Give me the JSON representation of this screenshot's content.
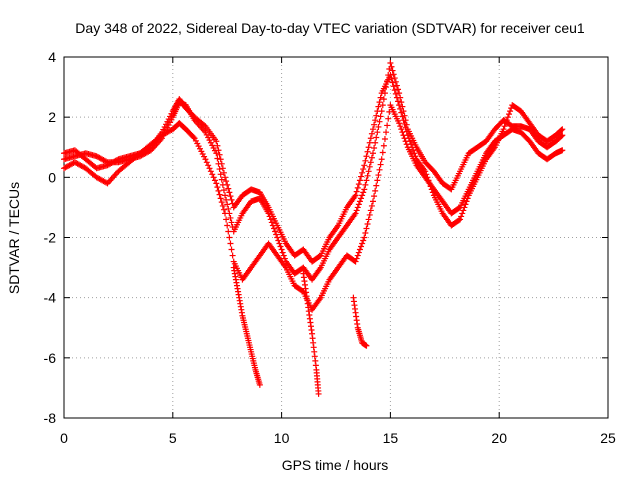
{
  "chart_data": {
    "type": "scatter",
    "title": "Day 348 of 2022, Sidereal Day-to-day VTEC variation (SDTVAR) for receiver ceu1",
    "xlabel": "GPS time / hours",
    "ylabel": "SDTVAR / TECUs",
    "xlim": [
      0,
      25
    ],
    "ylim": [
      -8,
      4
    ],
    "xticks": [
      "0",
      "5",
      "10",
      "15",
      "20",
      "25"
    ],
    "yticks": [
      "-8",
      "-6",
      "-4",
      "-2",
      "0",
      "2",
      "4"
    ],
    "grid": true,
    "marker": "+",
    "color": "#ff0000",
    "series": [
      {
        "x": [
          0,
          0.5,
          1,
          1.5,
          2,
          2.5,
          3,
          3.5,
          4,
          4.5,
          5,
          5.3,
          5.6,
          6,
          6.5,
          7,
          7.4,
          7.8,
          8.2,
          8.6,
          9,
          9.4,
          9.8,
          10.2,
          10.6,
          11,
          11.4,
          11.8,
          12.2,
          12.6,
          13,
          13.4,
          13.8,
          14.2,
          14.6,
          15,
          15.4,
          15.8,
          16.2,
          16.6,
          17,
          17.4,
          17.8,
          18.2,
          18.6,
          19,
          19.4,
          19.8,
          20.2,
          20.6,
          21,
          21.4,
          21.8,
          22.2,
          22.6,
          22.9
        ],
        "y": [
          0.6,
          0.7,
          0.8,
          0.7,
          0.5,
          0.5,
          0.6,
          0.7,
          0.9,
          1.3,
          2.0,
          2.5,
          2.4,
          1.9,
          1.5,
          0.8,
          -0.6,
          -1.8,
          -1.2,
          -0.8,
          -0.7,
          -1.2,
          -2.0,
          -2.8,
          -3.2,
          -3.0,
          -3.4,
          -3.0,
          -2.4,
          -2.0,
          -1.6,
          -1.2,
          -0.4,
          0.8,
          2.2,
          3.8,
          2.8,
          1.6,
          1.0,
          0.5,
          0.2,
          -0.2,
          -0.4,
          0.2,
          0.8,
          1.0,
          1.2,
          1.6,
          1.9,
          1.7,
          1.7,
          1.6,
          1.2,
          1.0,
          1.2,
          1.4
        ]
      },
      {
        "x": [
          0,
          0.5,
          1,
          1.5,
          2,
          2.5,
          3,
          3.5,
          4,
          4.5,
          5,
          5.3,
          5.6,
          6,
          6.5,
          7,
          7.4,
          7.8,
          8.2,
          8.6,
          9,
          9.4,
          9.8,
          10.2,
          10.6,
          11,
          11.4,
          11.8,
          12.2,
          12.6,
          13,
          13.4,
          13.8,
          14.2,
          14.6,
          15,
          15.4,
          15.8,
          16.2,
          16.6,
          17,
          17.4,
          17.8,
          18.2,
          18.6,
          19,
          19.4,
          19.8,
          20.2,
          20.6,
          21,
          21.4,
          21.8,
          22.2,
          22.6,
          22.9
        ],
        "y": [
          0.3,
          0.5,
          0.3,
          0.0,
          -0.2,
          0.2,
          0.5,
          0.8,
          1.1,
          1.4,
          1.6,
          1.8,
          1.6,
          1.3,
          0.6,
          -0.2,
          -1.2,
          -2.8,
          -3.4,
          -3.0,
          -2.6,
          -2.2,
          -2.6,
          -3.0,
          -3.6,
          -3.8,
          -4.4,
          -4.0,
          -3.4,
          -3.0,
          -2.6,
          -2.8,
          -2.0,
          -0.8,
          0.6,
          2.4,
          1.8,
          1.0,
          0.4,
          0.0,
          -0.4,
          -0.8,
          -1.2,
          -1.0,
          -0.4,
          0.2,
          0.8,
          1.2,
          1.4,
          1.6,
          1.5,
          1.2,
          0.8,
          0.6,
          0.8,
          0.9
        ]
      },
      {
        "x": [
          0,
          0.5,
          1,
          1.5,
          2,
          2.5,
          3,
          3.5,
          4,
          4.5,
          5,
          5.3,
          5.6,
          6,
          6.5,
          7,
          7.4,
          7.8,
          8.2,
          8.6,
          9,
          9.4,
          9.8,
          10.2,
          10.6,
          11,
          11.4,
          11.8,
          12.2,
          12.6,
          13,
          13.4,
          13.8,
          14.2,
          14.6,
          15,
          15.4,
          15.8,
          16.2,
          16.6,
          17,
          17.4,
          17.8,
          18.2,
          18.6,
          19,
          19.4,
          19.8,
          20.2,
          20.6,
          21,
          21.4,
          21.8,
          22.2,
          22.6,
          22.9
        ],
        "y": [
          0.8,
          0.9,
          0.6,
          0.3,
          0.4,
          0.6,
          0.7,
          0.8,
          1.0,
          1.5,
          2.2,
          2.6,
          2.3,
          2.0,
          1.7,
          1.2,
          0.0,
          -1.0,
          -0.6,
          -0.4,
          -0.5,
          -1.0,
          -1.6,
          -2.2,
          -2.6,
          -2.4,
          -2.8,
          -2.6,
          -2.0,
          -1.6,
          -1.0,
          -0.6,
          0.4,
          1.6,
          2.8,
          3.4,
          2.4,
          1.4,
          0.6,
          0.2,
          -0.6,
          -1.2,
          -1.6,
          -1.4,
          -0.6,
          0.0,
          0.6,
          1.0,
          1.6,
          2.4,
          2.2,
          1.8,
          1.4,
          1.2,
          1.4,
          1.6
        ]
      },
      {
        "x": [
          7.8,
          8.0,
          8.2,
          8.4,
          8.6,
          8.8,
          9.0
        ],
        "y": [
          -3.0,
          -3.8,
          -4.6,
          -5.2,
          -5.8,
          -6.4,
          -6.9
        ]
      },
      {
        "x": [
          11.0,
          11.2,
          11.4,
          11.6,
          11.7
        ],
        "y": [
          -3.2,
          -4.2,
          -5.2,
          -6.4,
          -7.2
        ]
      },
      {
        "x": [
          13.3,
          13.5,
          13.7,
          13.9
        ],
        "y": [
          -4.0,
          -5.0,
          -5.5,
          -5.6
        ]
      }
    ]
  }
}
